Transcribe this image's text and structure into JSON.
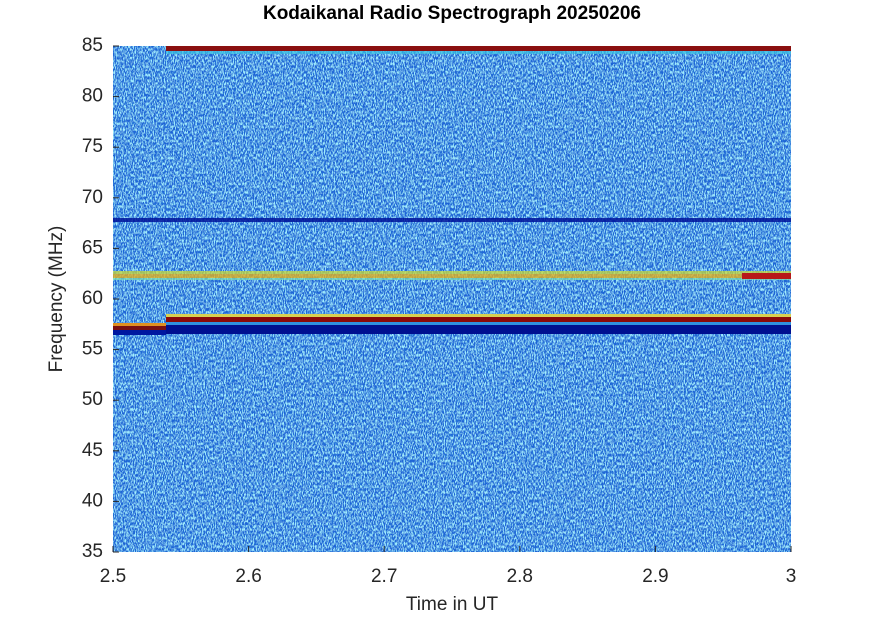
{
  "chart_data": {
    "type": "spectrogram",
    "title": "Kodaikanal Radio Spectrograph  20250206",
    "x_label": "Time in UT",
    "y_label": "Frequency (MHz)",
    "xlim": [
      2.5,
      3
    ],
    "xticks": [
      2.5,
      2.6,
      2.7,
      2.8,
      2.9,
      3
    ],
    "ylim": [
      35,
      85
    ],
    "yticks": [
      35,
      40,
      45,
      50,
      55,
      60,
      65,
      70,
      75,
      80,
      85
    ]
  }
}
